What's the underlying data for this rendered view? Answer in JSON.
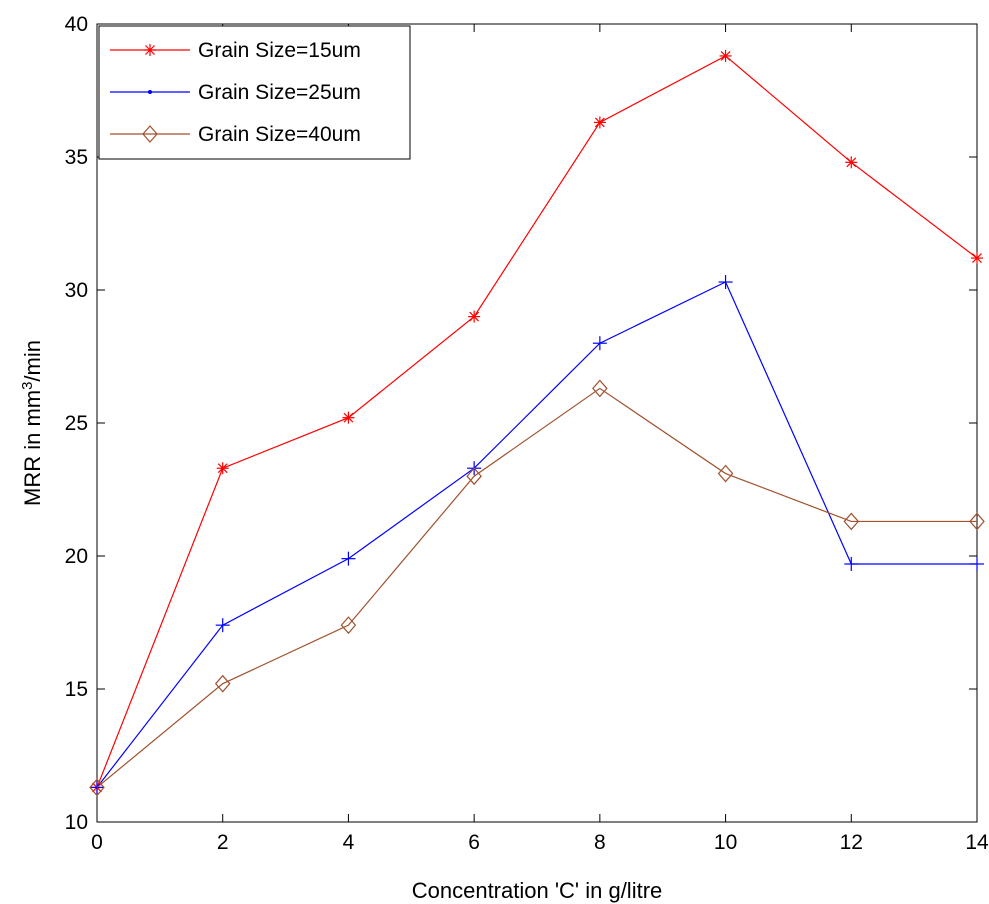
{
  "chart_data": {
    "type": "line",
    "xlabel": "Concentration 'C' in g/litre",
    "ylabel": {
      "pre": "MRR in mm",
      "sup": "3",
      "post": "/min"
    },
    "xlim": [
      0,
      14
    ],
    "ylim": [
      10,
      40
    ],
    "x_ticks": [
      0,
      2,
      4,
      6,
      8,
      10,
      12,
      14
    ],
    "y_ticks": [
      10,
      15,
      20,
      25,
      30,
      35,
      40
    ],
    "grid": false,
    "legend_position": "top-left",
    "x": [
      0,
      2,
      4,
      6,
      8,
      10,
      12,
      14
    ],
    "series": [
      {
        "name": "Grain Size=15um",
        "color": "#ff0000",
        "marker": "asterisk",
        "values": [
          11.3,
          23.3,
          25.2,
          29.0,
          36.3,
          38.8,
          34.8,
          31.2
        ]
      },
      {
        "name": "Grain Size=25um",
        "color": "#0000ff",
        "marker": "plus",
        "values": [
          11.3,
          17.4,
          19.9,
          23.3,
          28.0,
          30.3,
          19.7,
          19.7
        ]
      },
      {
        "name": "Grain Size=40um",
        "color": "#a0522d",
        "marker": "diamond",
        "values": [
          11.3,
          15.2,
          17.4,
          23.0,
          26.3,
          23.1,
          21.3,
          21.3
        ]
      }
    ]
  }
}
